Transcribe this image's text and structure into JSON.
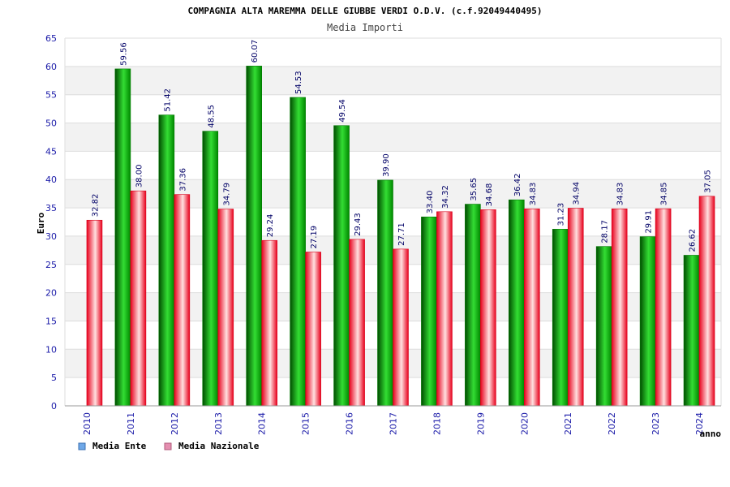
{
  "chart_data": {
    "type": "bar",
    "title": "COMPAGNIA ALTA MAREMMA DELLE GIUBBE VERDI O.D.V. (c.f.92049440495)",
    "subtitle": "Media Importi",
    "xlabel": "anno",
    "ylabel": "Euro",
    "ylim": [
      0,
      65
    ],
    "ytick_step": 5,
    "yticks": [
      "0",
      "5",
      "10",
      "15",
      "20",
      "25",
      "30",
      "35",
      "40",
      "45",
      "50",
      "55",
      "60",
      "65"
    ],
    "categories": [
      "2010",
      "2011",
      "2012",
      "2013",
      "2014",
      "2015",
      "2016",
      "2017",
      "2018",
      "2019",
      "2020",
      "2021",
      "2022",
      "2023",
      "2024"
    ],
    "series": [
      {
        "name": "Media Ente",
        "values": [
          null,
          59.56,
          51.42,
          48.55,
          60.07,
          54.53,
          49.54,
          39.9,
          33.4,
          35.65,
          36.42,
          31.23,
          28.17,
          29.91,
          26.62
        ],
        "labels": [
          "",
          "59.56",
          "51.42",
          "48.55",
          "60.07",
          "54.53",
          "49.54",
          "39.90",
          "33.40",
          "35.65",
          "36.42",
          "31.23",
          "28.17",
          "29.91",
          "26.62"
        ]
      },
      {
        "name": "Media Nazionale",
        "values": [
          32.82,
          38.0,
          37.36,
          34.79,
          29.24,
          27.19,
          29.43,
          27.71,
          34.32,
          34.68,
          34.83,
          34.94,
          34.83,
          34.85,
          37.05
        ],
        "labels": [
          "32.82",
          "38.00",
          "37.36",
          "34.79",
          "29.24",
          "27.19",
          "29.43",
          "27.71",
          "34.32",
          "34.68",
          "34.83",
          "34.94",
          "34.83",
          "34.85",
          "37.05"
        ]
      }
    ],
    "legend": [
      {
        "name": "Media Ente",
        "color": "#6fa8e8"
      },
      {
        "name": "Media Nazionale",
        "color": "#e58fb0"
      }
    ],
    "grid": true,
    "legend_position": "bottom-left"
  },
  "colors": {
    "ente_dark": "#006400",
    "ente_light": "#33dd33",
    "naz_dark": "#e8001c",
    "naz_light": "#ffe0e0",
    "axis_text": "#1a1aa8",
    "label_text": "#000066",
    "band": "#f2f2f2"
  }
}
